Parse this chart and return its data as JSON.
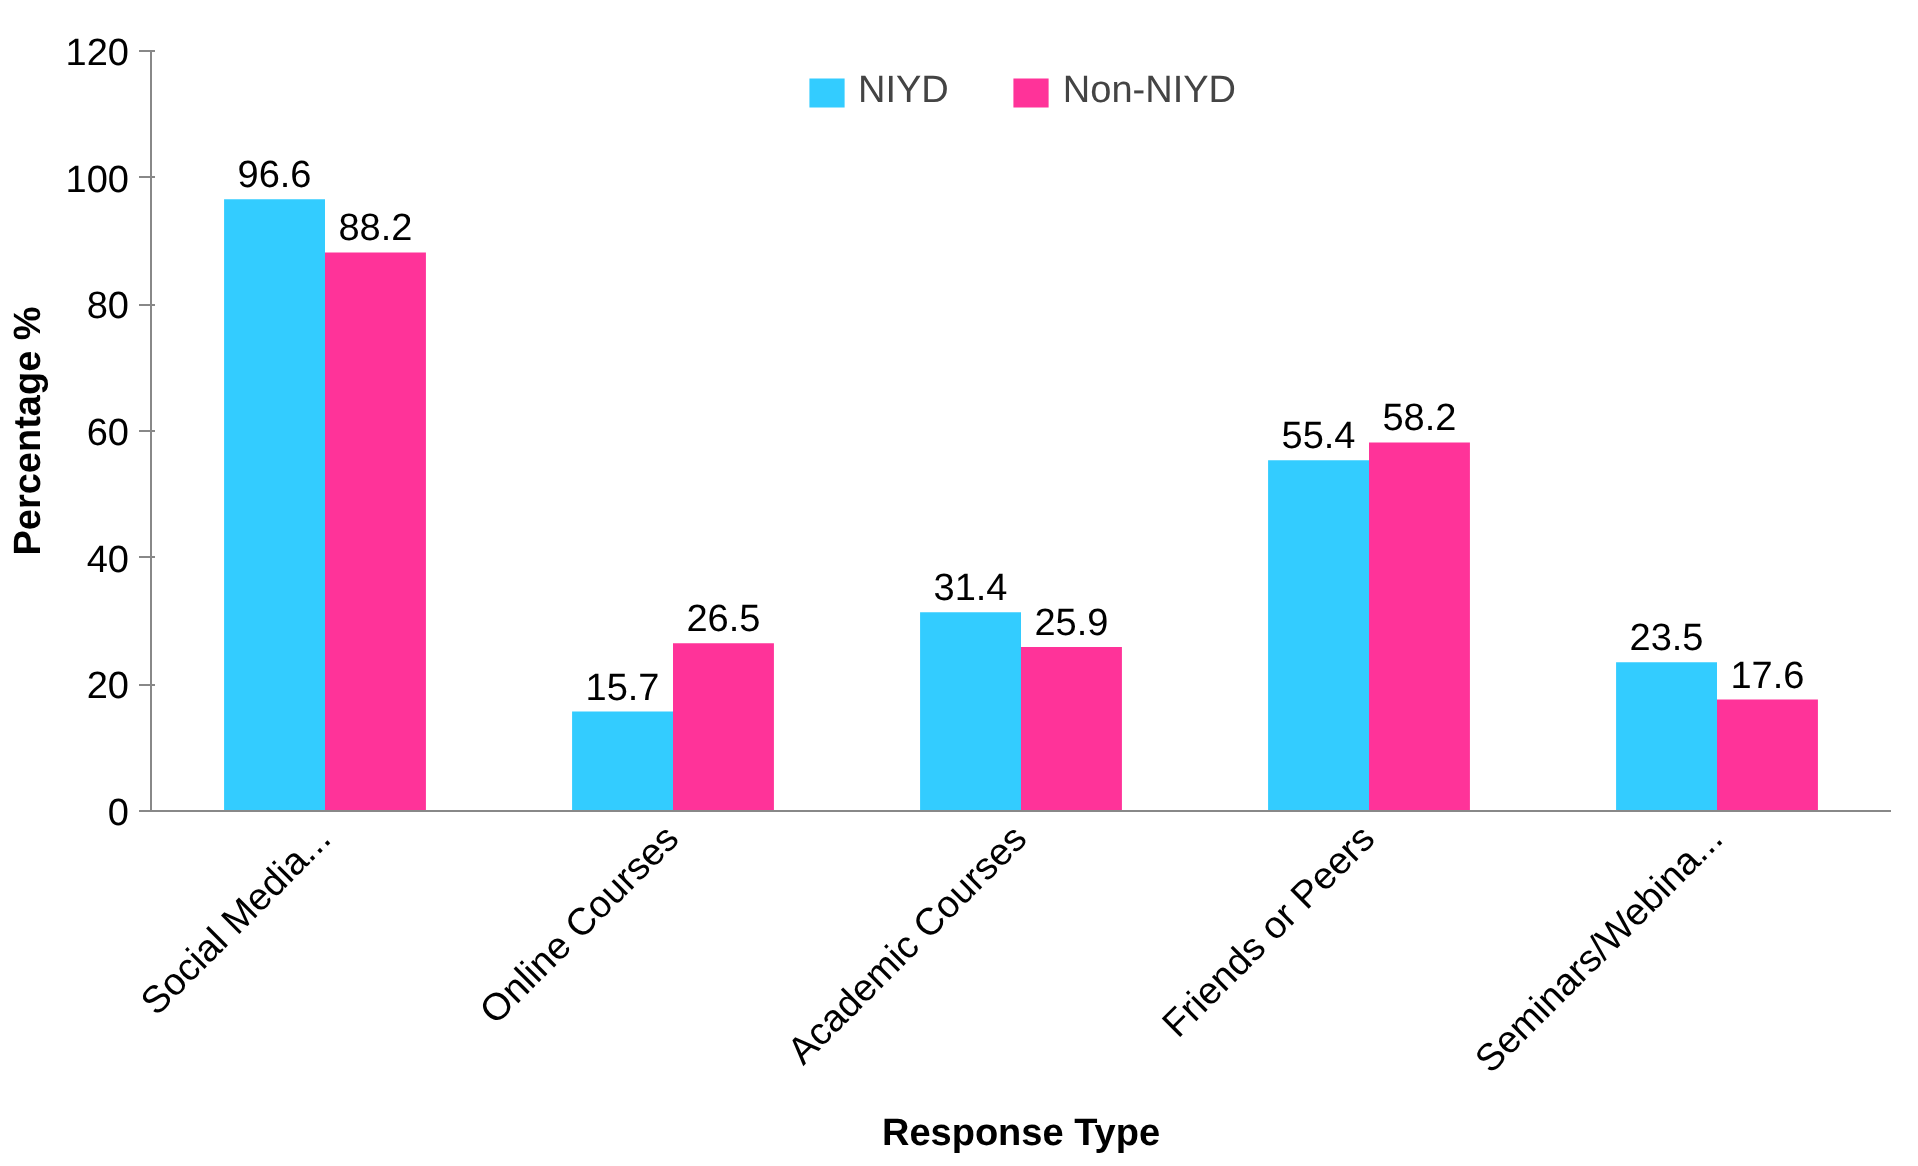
{
  "chart_data": {
    "type": "bar",
    "xlabel": "Response Type",
    "ylabel": "Percentage %",
    "categories": [
      "Social Media...",
      "Online Courses",
      "Academic Courses",
      "Friends or Peers",
      "Seminars/Webina..."
    ],
    "series": [
      {
        "name": "NIYD",
        "color": "#33ccff",
        "values": [
          96.6,
          15.7,
          31.4,
          55.4,
          23.5
        ]
      },
      {
        "name": "Non-NIYD",
        "color": "#ff3399",
        "values": [
          88.2,
          26.5,
          25.9,
          58.2,
          17.6
        ]
      }
    ],
    "ylim": [
      0,
      120
    ],
    "yticks": [
      0,
      20,
      40,
      60,
      80,
      100,
      120
    ],
    "grid": false,
    "legend": "top",
    "data_labels": true
  }
}
